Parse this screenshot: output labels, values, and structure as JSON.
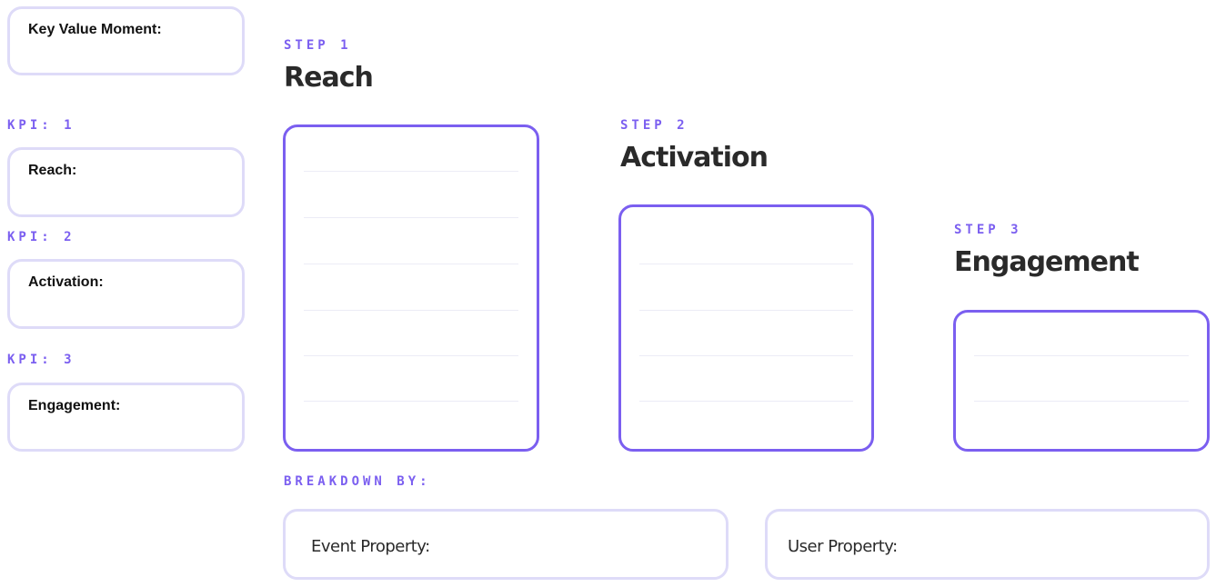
{
  "left": {
    "key_value_moment": "Key Value Moment:",
    "kpis": [
      {
        "tag": "KPI: 1",
        "label": "Reach:"
      },
      {
        "tag": "KPI: 2",
        "label": "Activation:"
      },
      {
        "tag": "KPI: 3",
        "label": "Engagement:"
      }
    ]
  },
  "steps": [
    {
      "tag": "STEP 1",
      "title": "Reach"
    },
    {
      "tag": "STEP 2",
      "title": "Activation"
    },
    {
      "tag": "STEP 3",
      "title": "Engagement"
    }
  ],
  "breakdown": {
    "tag": "BREAKDOWN BY:",
    "event_property": "Event Property:",
    "user_property": "User Property:"
  },
  "colors": {
    "accent": "#7b5ff0",
    "soft_border": "#dedbf8",
    "title": "#2a2a2a"
  }
}
